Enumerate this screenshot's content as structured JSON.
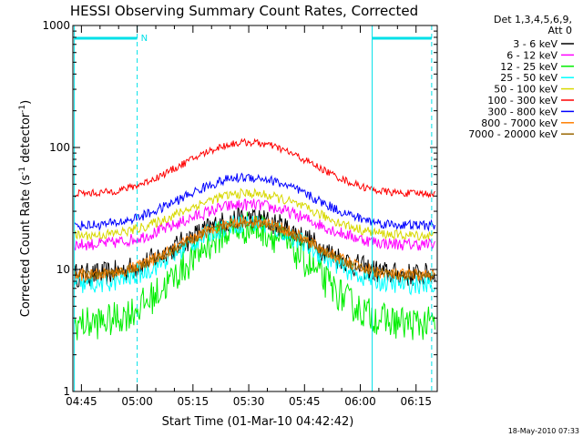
{
  "chart_data": {
    "type": "line",
    "title": "HESSI Observing Summary Count Rates, Corrected",
    "xlabel": "Start Time (01-Mar-10 04:42:42)",
    "ylabel": "Corrected Count Rate (s⁻¹ detector⁻¹)",
    "ylabel_parts": {
      "pre": "Corrected Count Rate (s",
      "sup1": "-1",
      "mid": " detector",
      "sup2": "-1",
      "post": ")"
    },
    "y_scale": "log",
    "ylim": [
      1,
      1000
    ],
    "x_minutes_after_0442": [
      0,
      98
    ],
    "x_ticks": [
      {
        "label": "04:45",
        "minutes": 2.3
      },
      {
        "label": "05:00",
        "minutes": 17.3
      },
      {
        "label": "05:15",
        "minutes": 32.3
      },
      {
        "label": "05:30",
        "minutes": 47.3
      },
      {
        "label": "05:45",
        "minutes": 62.3
      },
      {
        "label": "06:00",
        "minutes": 77.3
      },
      {
        "label": "06:15",
        "minutes": 92.3
      }
    ],
    "y_ticks": [
      {
        "label": "1",
        "value": 1
      },
      {
        "label": "10",
        "value": 10
      },
      {
        "label": "100",
        "value": 100
      },
      {
        "label": "1000",
        "value": 1000
      }
    ],
    "legend_header": [
      "Det 1,3,4,5,6,9,",
      "Att 0"
    ],
    "legend_position": "right",
    "series": [
      {
        "name": "3 - 6 keV",
        "color": "#000000",
        "min": 9,
        "max": 26,
        "noise": 0.1
      },
      {
        "name": "6 - 12 keV",
        "color": "#ff00ff",
        "min": 16,
        "max": 34,
        "noise": 0.05
      },
      {
        "name": "12 - 25 keV",
        "color": "#00ee00",
        "min": 3.6,
        "max": 22,
        "noise": 0.14
      },
      {
        "name": "25 - 50 keV",
        "color": "#00ffff",
        "min": 7.5,
        "max": 24,
        "noise": 0.08
      },
      {
        "name": "50 - 100 keV",
        "color": "#d8d800",
        "min": 19,
        "max": 42,
        "noise": 0.04
      },
      {
        "name": "100 - 300 keV",
        "color": "#ff0000",
        "min": 42,
        "max": 110,
        "noise": 0.03
      },
      {
        "name": "300 - 800 keV",
        "color": "#0000ff",
        "min": 23,
        "max": 57,
        "noise": 0.04
      },
      {
        "name": "800 - 7000 keV",
        "color": "#ff7f00",
        "min": 9,
        "max": 25,
        "noise": 0.05
      },
      {
        "name": "7000 - 20000 keV",
        "color": "#996600",
        "min": 9,
        "max": 24,
        "noise": 0.04
      }
    ],
    "saa_marker": "N",
    "saa_intervals": [
      {
        "start_min": 0.4,
        "end_min": 17.3
      },
      {
        "start_min": 80.5,
        "end_min": 96.5
      }
    ]
  },
  "footer": {
    "timestamp": "18-May-2010 07:33"
  }
}
